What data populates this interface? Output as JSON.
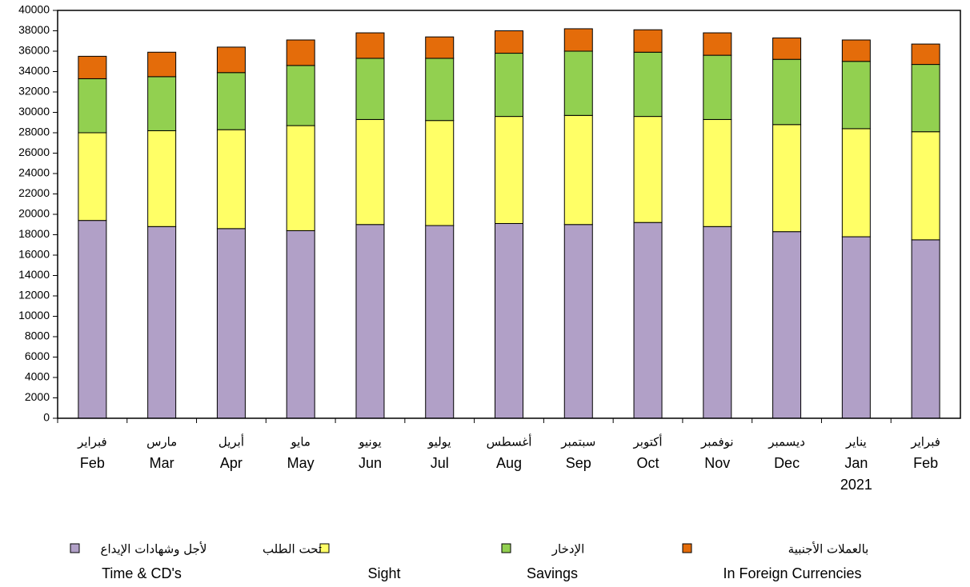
{
  "chart_data": {
    "type": "stacked_bar",
    "categories": [
      [
        "فبراير",
        "Feb"
      ],
      [
        "مارس",
        "Mar"
      ],
      [
        "أبريل",
        "Apr"
      ],
      [
        "مايو",
        "May"
      ],
      [
        "يونيو",
        "Jun"
      ],
      [
        "يوليو",
        "Jul"
      ],
      [
        "أغسطس",
        "Aug"
      ],
      [
        "سبتمبر",
        "Sep"
      ],
      [
        "أكتوبر",
        "Oct"
      ],
      [
        "نوفمبر",
        "Nov"
      ],
      [
        "ديسمبر",
        "Dec"
      ],
      [
        "يناير",
        "Jan",
        "2021"
      ],
      [
        "فبراير",
        "Feb"
      ]
    ],
    "series": [
      {
        "name": "Time & CD's",
        "name_ar": "لأجل وشهادات الإيداع",
        "color": "#b1a0c7",
        "values": [
          19400,
          18800,
          18600,
          18400,
          19000,
          18900,
          19100,
          19000,
          19200,
          18800,
          18300,
          17800,
          17500
        ]
      },
      {
        "name": "Sight",
        "name_ar": "تحت الطلب",
        "color": "#ffff66",
        "values": [
          8600,
          9400,
          9700,
          10300,
          10300,
          10300,
          10500,
          10700,
          10400,
          10500,
          10500,
          10600,
          10600
        ]
      },
      {
        "name": "Savings",
        "name_ar": "الإدخار",
        "color": "#92d050",
        "values": [
          5300,
          5300,
          5600,
          5900,
          6000,
          6100,
          6200,
          6300,
          6300,
          6300,
          6400,
          6600,
          6600
        ]
      },
      {
        "name": "In Foreign Currencies",
        "name_ar": "بالعملات الأجنبية",
        "color": "#e46c0a",
        "values": [
          2200,
          2400,
          2500,
          2500,
          2500,
          2100,
          2200,
          2200,
          2200,
          2200,
          2100,
          2100,
          2000
        ]
      }
    ],
    "ylim": [
      0,
      40000
    ],
    "yticks": [
      0,
      2000,
      4000,
      6000,
      8000,
      10000,
      12000,
      14000,
      16000,
      18000,
      20000,
      22000,
      24000,
      26000,
      28000,
      30000,
      32000,
      34000,
      36000,
      38000,
      40000
    ],
    "grid": false
  }
}
